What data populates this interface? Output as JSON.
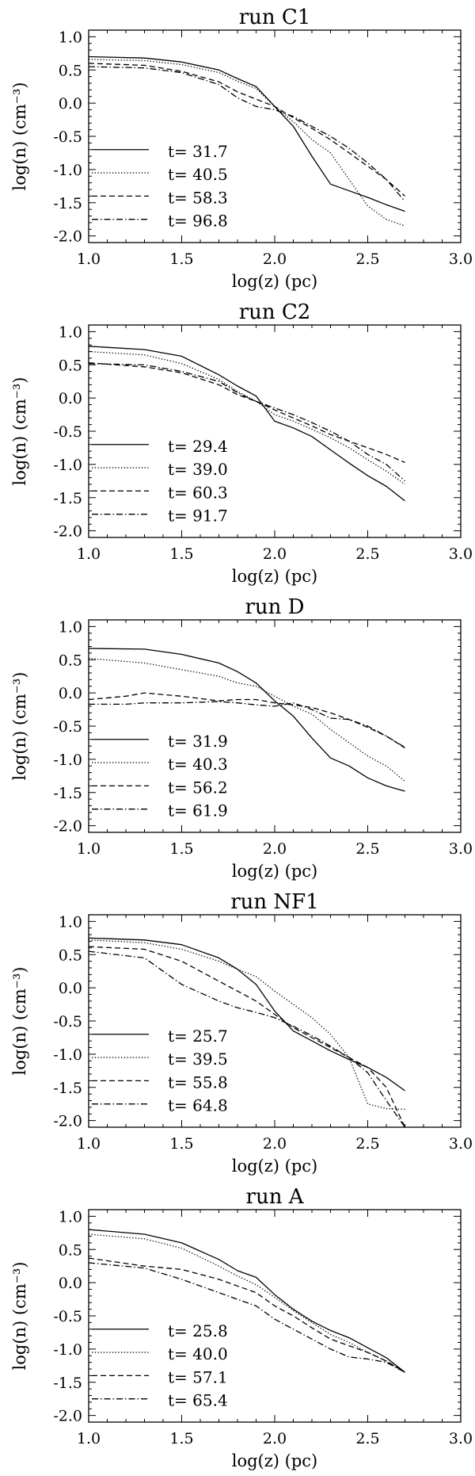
{
  "chart_data": [
    {
      "type": "line",
      "title": "run C1",
      "xlabel": "log(z) (pc)",
      "ylabel": "log(n) (cm⁻³)",
      "xlim": [
        1.0,
        3.0
      ],
      "ylim": [
        -2.1,
        1.1
      ],
      "xticks": [
        "1.0",
        "1.5",
        "2.0",
        "2.5",
        "3.0"
      ],
      "yticks": [
        "1.0",
        "0.5",
        "0.0",
        "-0.5",
        "-1.0",
        "-1.5",
        "-2.0"
      ],
      "legend": "lower-left",
      "series": [
        {
          "name": "t= 31.7",
          "style": "solid",
          "x": [
            1.0,
            1.3,
            1.5,
            1.7,
            1.8,
            1.9,
            2.0,
            2.1,
            2.2,
            2.3,
            2.4,
            2.5,
            2.6,
            2.7
          ],
          "y": [
            0.7,
            0.68,
            0.62,
            0.5,
            0.37,
            0.25,
            -0.05,
            -0.35,
            -0.8,
            -1.22,
            -1.32,
            -1.42,
            -1.53,
            -1.63
          ]
        },
        {
          "name": "t= 40.5",
          "style": "dotted",
          "x": [
            1.0,
            1.3,
            1.5,
            1.7,
            1.8,
            1.9,
            2.0,
            2.1,
            2.2,
            2.3,
            2.4,
            2.5,
            2.6,
            2.7
          ],
          "y": [
            0.66,
            0.64,
            0.58,
            0.46,
            0.33,
            0.22,
            -0.05,
            -0.28,
            -0.55,
            -0.75,
            -1.15,
            -1.55,
            -1.75,
            -1.85
          ]
        },
        {
          "name": "t= 58.3",
          "style": "dashed",
          "x": [
            1.0,
            1.3,
            1.5,
            1.7,
            1.8,
            1.9,
            2.0,
            2.1,
            2.2,
            2.3,
            2.4,
            2.5,
            2.6,
            2.7
          ],
          "y": [
            0.6,
            0.57,
            0.48,
            0.32,
            0.17,
            0.06,
            -0.05,
            -0.22,
            -0.38,
            -0.55,
            -0.75,
            -0.95,
            -1.15,
            -1.4
          ]
        },
        {
          "name": "t= 96.8",
          "style": "dashdot",
          "x": [
            1.0,
            1.3,
            1.5,
            1.7,
            1.8,
            1.9,
            2.0,
            2.1,
            2.2,
            2.3,
            2.4,
            2.5,
            2.6,
            2.7
          ],
          "y": [
            0.55,
            0.53,
            0.46,
            0.28,
            0.08,
            -0.05,
            -0.1,
            -0.2,
            -0.35,
            -0.5,
            -0.68,
            -0.9,
            -1.15,
            -1.48
          ]
        }
      ]
    },
    {
      "type": "line",
      "title": "run C2",
      "xlabel": "log(z) (pc)",
      "ylabel": "log(n) (cm⁻³)",
      "xlim": [
        1.0,
        3.0
      ],
      "ylim": [
        -2.1,
        1.1
      ],
      "xticks": [
        "1.0",
        "1.5",
        "2.0",
        "2.5",
        "3.0"
      ],
      "yticks": [
        "1.0",
        "0.5",
        "0.0",
        "-0.5",
        "-1.0",
        "-1.5",
        "-2.0"
      ],
      "legend": "lower-left",
      "series": [
        {
          "name": "t= 29.4",
          "style": "solid",
          "x": [
            1.0,
            1.3,
            1.5,
            1.7,
            1.8,
            1.9,
            2.0,
            2.1,
            2.2,
            2.3,
            2.4,
            2.5,
            2.6,
            2.7
          ],
          "y": [
            0.78,
            0.73,
            0.63,
            0.35,
            0.18,
            0.03,
            -0.35,
            -0.45,
            -0.58,
            -0.78,
            -0.98,
            -1.17,
            -1.33,
            -1.55
          ]
        },
        {
          "name": "t= 39.0",
          "style": "dotted",
          "x": [
            1.0,
            1.3,
            1.5,
            1.7,
            1.8,
            1.9,
            2.0,
            2.1,
            2.2,
            2.3,
            2.4,
            2.5,
            2.6,
            2.7
          ],
          "y": [
            0.7,
            0.65,
            0.52,
            0.28,
            0.1,
            -0.05,
            -0.25,
            -0.35,
            -0.47,
            -0.6,
            -0.75,
            -0.93,
            -1.1,
            -1.3
          ]
        },
        {
          "name": "t= 60.3",
          "style": "dashed",
          "x": [
            1.0,
            1.3,
            1.5,
            1.7,
            1.8,
            1.9,
            2.0,
            2.1,
            2.2,
            2.3,
            2.4,
            2.5,
            2.6,
            2.7
          ],
          "y": [
            0.53,
            0.47,
            0.38,
            0.2,
            0.05,
            -0.05,
            -0.18,
            -0.3,
            -0.42,
            -0.55,
            -0.65,
            -0.75,
            -0.85,
            -0.97
          ]
        },
        {
          "name": "t= 91.7",
          "style": "dashdot",
          "x": [
            1.0,
            1.3,
            1.5,
            1.7,
            1.8,
            1.9,
            2.0,
            2.1,
            2.2,
            2.3,
            2.4,
            2.5,
            2.6,
            2.7
          ],
          "y": [
            0.52,
            0.5,
            0.4,
            0.25,
            0.08,
            -0.05,
            -0.15,
            -0.25,
            -0.37,
            -0.5,
            -0.65,
            -0.85,
            -1.0,
            -1.25
          ]
        }
      ]
    },
    {
      "type": "line",
      "title": "run D",
      "xlabel": "log(z) (pc)",
      "ylabel": "log(n) (cm⁻³)",
      "xlim": [
        1.0,
        3.0
      ],
      "ylim": [
        -2.1,
        1.1
      ],
      "xticks": [
        "1.0",
        "1.5",
        "2.0",
        "2.5",
        "3.0"
      ],
      "yticks": [
        "1.0",
        "0.5",
        "0.0",
        "-0.5",
        "-1.0",
        "-1.5",
        "-2.0"
      ],
      "legend": "lower-left",
      "series": [
        {
          "name": "t= 31.9",
          "style": "solid",
          "x": [
            1.0,
            1.3,
            1.5,
            1.7,
            1.8,
            1.9,
            2.0,
            2.1,
            2.2,
            2.3,
            2.4,
            2.5,
            2.6,
            2.7
          ],
          "y": [
            0.67,
            0.66,
            0.58,
            0.45,
            0.32,
            0.15,
            -0.12,
            -0.35,
            -0.68,
            -0.98,
            -1.1,
            -1.28,
            -1.4,
            -1.48
          ]
        },
        {
          "name": "t= 40.3",
          "style": "dotted",
          "x": [
            1.0,
            1.3,
            1.5,
            1.7,
            1.8,
            1.9,
            2.0,
            2.1,
            2.2,
            2.3,
            2.4,
            2.5,
            2.6,
            2.7
          ],
          "y": [
            0.52,
            0.45,
            0.35,
            0.25,
            0.15,
            0.1,
            -0.05,
            -0.2,
            -0.32,
            -0.55,
            -0.75,
            -0.95,
            -1.1,
            -1.33
          ]
        },
        {
          "name": "t= 56.2",
          "style": "dashed",
          "x": [
            1.0,
            1.2,
            1.3,
            1.5,
            1.7,
            1.8,
            1.9,
            2.0,
            2.1,
            2.2,
            2.3,
            2.4,
            2.5,
            2.6,
            2.7
          ],
          "y": [
            -0.1,
            -0.05,
            0.0,
            -0.05,
            -0.12,
            -0.1,
            -0.1,
            -0.15,
            -0.18,
            -0.22,
            -0.3,
            -0.4,
            -0.52,
            -0.65,
            -0.83
          ]
        },
        {
          "name": "t= 61.9",
          "style": "dashdot",
          "x": [
            1.0,
            1.2,
            1.3,
            1.5,
            1.7,
            1.8,
            1.9,
            2.0,
            2.1,
            2.2,
            2.3,
            2.4,
            2.5,
            2.6,
            2.7
          ],
          "y": [
            -0.17,
            -0.17,
            -0.15,
            -0.15,
            -0.13,
            -0.15,
            -0.18,
            -0.2,
            -0.15,
            -0.25,
            -0.38,
            -0.4,
            -0.5,
            -0.65,
            -0.82
          ]
        }
      ]
    },
    {
      "type": "line",
      "title": "run NF1",
      "xlabel": "log(z) (pc)",
      "ylabel": "log(n) (cm⁻³)",
      "xlim": [
        1.0,
        3.0
      ],
      "ylim": [
        -2.1,
        1.1
      ],
      "xticks": [
        "1.0",
        "1.5",
        "2.0",
        "2.5",
        "3.0"
      ],
      "yticks": [
        "1.0",
        "0.5",
        "0.0",
        "-0.5",
        "-1.0",
        "-1.5",
        "-2.0"
      ],
      "legend": "lower-left",
      "series": [
        {
          "name": "t= 25.7",
          "style": "solid",
          "x": [
            1.0,
            1.3,
            1.5,
            1.7,
            1.8,
            1.9,
            2.0,
            2.1,
            2.2,
            2.3,
            2.4,
            2.5,
            2.6,
            2.7
          ],
          "y": [
            0.75,
            0.72,
            0.65,
            0.45,
            0.28,
            0.05,
            -0.35,
            -0.65,
            -0.8,
            -0.95,
            -1.08,
            -1.2,
            -1.35,
            -1.55
          ]
        },
        {
          "name": "t= 39.5",
          "style": "dotted",
          "x": [
            1.0,
            1.3,
            1.5,
            1.7,
            1.8,
            1.9,
            2.0,
            2.1,
            2.2,
            2.3,
            2.4,
            2.5,
            2.6,
            2.7
          ],
          "y": [
            0.72,
            0.68,
            0.58,
            0.4,
            0.28,
            0.17,
            -0.05,
            -0.25,
            -0.45,
            -0.7,
            -1.05,
            -1.75,
            -1.82,
            -1.83
          ]
        },
        {
          "name": "t= 55.8",
          "style": "dashed",
          "x": [
            1.0,
            1.3,
            1.5,
            1.7,
            1.8,
            1.9,
            2.0,
            2.1,
            2.2,
            2.3,
            2.4,
            2.5,
            2.6,
            2.7
          ],
          "y": [
            0.62,
            0.58,
            0.4,
            0.1,
            -0.05,
            -0.2,
            -0.4,
            -0.6,
            -0.75,
            -0.9,
            -1.05,
            -1.2,
            -1.5,
            -2.1
          ]
        },
        {
          "name": "t= 64.8",
          "style": "dashdot",
          "x": [
            1.0,
            1.3,
            1.5,
            1.7,
            1.8,
            1.9,
            2.0,
            2.1,
            2.2,
            2.3,
            2.4,
            2.5,
            2.6,
            2.7
          ],
          "y": [
            0.55,
            0.45,
            0.05,
            -0.2,
            -0.3,
            -0.37,
            -0.45,
            -0.58,
            -0.72,
            -0.88,
            -1.05,
            -1.28,
            -1.7,
            -2.1
          ]
        }
      ]
    },
    {
      "type": "line",
      "title": "run A",
      "xlabel": "log(z) (pc)",
      "ylabel": "log(n) (cm⁻³)",
      "xlim": [
        1.0,
        3.0
      ],
      "ylim": [
        -2.1,
        1.1
      ],
      "xticks": [
        "1.0",
        "1.5",
        "2.0",
        "2.5",
        "3.0"
      ],
      "yticks": [
        "1.0",
        "0.5",
        "0.0",
        "-0.5",
        "-1.0",
        "-1.5",
        "-2.0"
      ],
      "legend": "lower-left",
      "series": [
        {
          "name": "t= 25.8",
          "style": "solid",
          "x": [
            1.0,
            1.3,
            1.5,
            1.7,
            1.8,
            1.9,
            2.0,
            2.1,
            2.2,
            2.3,
            2.4,
            2.5,
            2.6,
            2.7
          ],
          "y": [
            0.8,
            0.73,
            0.6,
            0.35,
            0.18,
            0.08,
            -0.18,
            -0.4,
            -0.58,
            -0.72,
            -0.83,
            -0.98,
            -1.13,
            -1.35
          ]
        },
        {
          "name": "t= 40.0",
          "style": "dotted",
          "x": [
            1.0,
            1.3,
            1.5,
            1.7,
            1.8,
            1.9,
            2.0,
            2.1,
            2.2,
            2.3,
            2.4,
            2.5,
            2.6,
            2.7
          ],
          "y": [
            0.73,
            0.66,
            0.52,
            0.25,
            0.1,
            -0.03,
            -0.22,
            -0.42,
            -0.6,
            -0.78,
            -0.9,
            -1.05,
            -1.18,
            -1.35
          ]
        },
        {
          "name": "t= 57.1",
          "style": "dashed",
          "x": [
            1.0,
            1.3,
            1.5,
            1.7,
            1.8,
            1.9,
            2.0,
            2.1,
            2.2,
            2.3,
            2.4,
            2.5,
            2.6,
            2.7
          ],
          "y": [
            0.37,
            0.25,
            0.2,
            0.05,
            -0.05,
            -0.15,
            -0.35,
            -0.5,
            -0.68,
            -0.85,
            -0.95,
            -1.05,
            -1.18,
            -1.35
          ]
        },
        {
          "name": "t= 65.4",
          "style": "dashdot",
          "x": [
            1.0,
            1.3,
            1.5,
            1.7,
            1.8,
            1.9,
            2.0,
            2.1,
            2.2,
            2.3,
            2.4,
            2.5,
            2.6,
            2.7
          ],
          "y": [
            0.3,
            0.22,
            0.05,
            -0.15,
            -0.25,
            -0.35,
            -0.55,
            -0.7,
            -0.85,
            -1.0,
            -1.12,
            -1.15,
            -1.2,
            -1.35
          ]
        }
      ]
    }
  ]
}
